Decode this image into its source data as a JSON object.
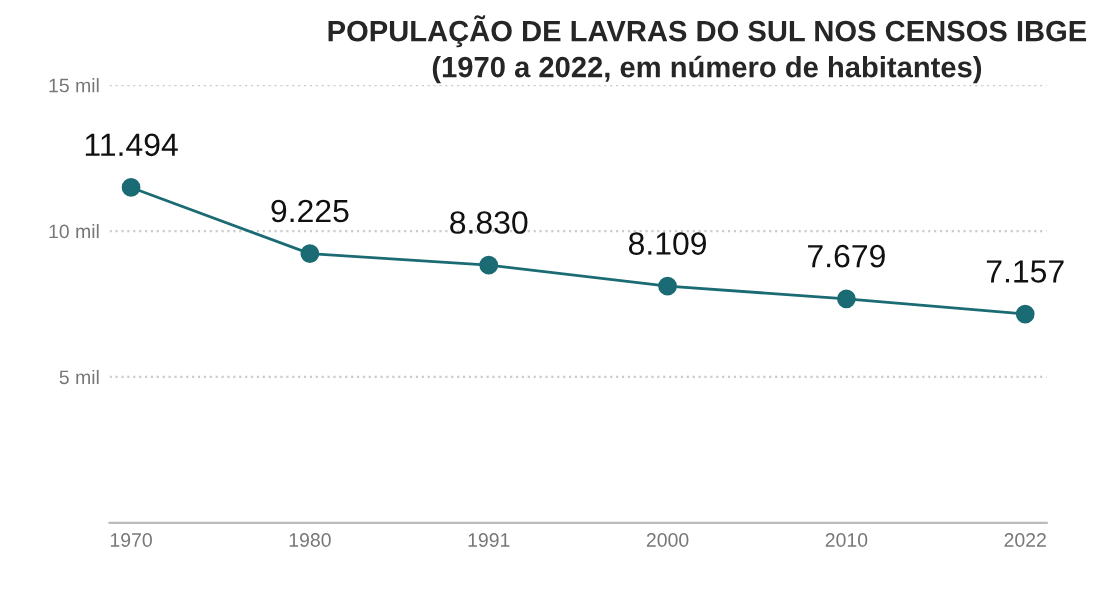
{
  "chart_data": {
    "type": "line",
    "title": "POPULAÇÃO DE LAVRAS DO SUL NOS CENSOS IBGE\n(1970 a 2022, em número de habitantes)",
    "categories": [
      "1970",
      "1980",
      "1991",
      "2000",
      "2010",
      "2022"
    ],
    "series": [
      {
        "color": "#1a6b73",
        "values": [
          11.494,
          9.225,
          8.83,
          8.109,
          7.679,
          7.157
        ],
        "value_labels": [
          "11.494",
          "9.225",
          "8.830",
          "8.109",
          "7.679",
          "7.157"
        ]
      }
    ],
    "ylim": [
      0,
      15
    ],
    "yticks": [
      {
        "value": 5,
        "label": "5 mil"
      },
      {
        "value": 10,
        "label": "10 mil"
      },
      {
        "value": 15,
        "label": "15 mil"
      }
    ],
    "grid": "y",
    "marker": "circle",
    "line_style": "solid"
  }
}
